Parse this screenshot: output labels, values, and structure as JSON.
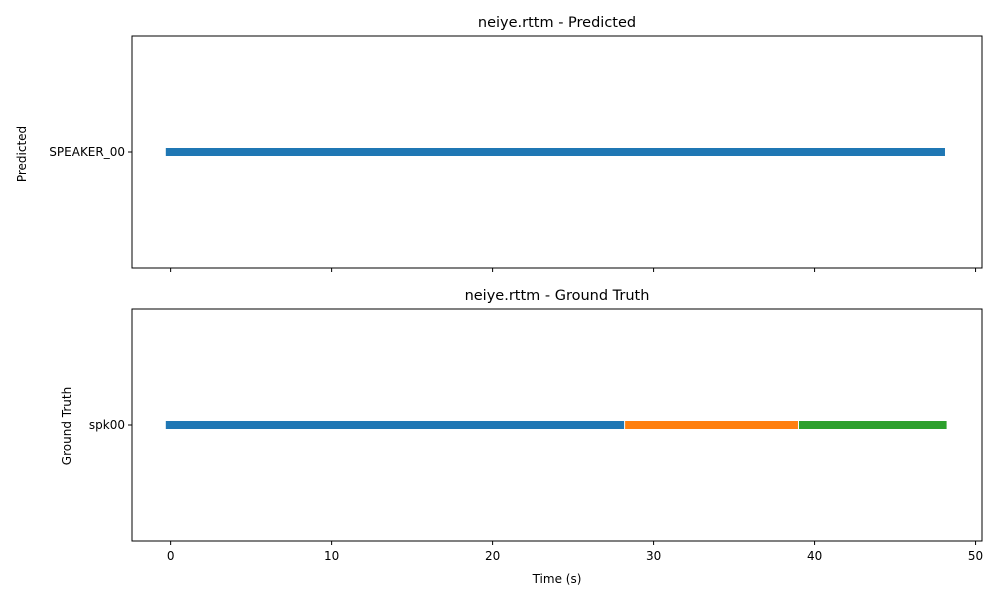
{
  "chart_data": [
    {
      "type": "timeline",
      "title": "neiye.rttm - Predicted",
      "ylabel": "Predicted",
      "xlabel": "",
      "xlim": [
        -2.4,
        50.4
      ],
      "x_ticks": [
        0,
        10,
        20,
        30,
        40,
        50
      ],
      "show_x_tick_labels": false,
      "grid": false,
      "categories": [
        "SPEAKER_00"
      ],
      "segments": [
        {
          "row": "SPEAKER_00",
          "start": -0.3,
          "end": 48.1,
          "color": "#1f77b4"
        }
      ]
    },
    {
      "type": "timeline",
      "title": "neiye.rttm - Ground Truth",
      "ylabel": "Ground Truth",
      "xlabel": "Time (s)",
      "xlim": [
        -2.4,
        50.4
      ],
      "x_ticks": [
        0,
        10,
        20,
        30,
        40,
        50
      ],
      "show_x_tick_labels": true,
      "grid": false,
      "categories": [
        "spk00"
      ],
      "segments": [
        {
          "row": "spk00",
          "start": -0.3,
          "end": 28.2,
          "color": "#1f77b4"
        },
        {
          "row": "spk00",
          "start": 28.2,
          "end": 39.0,
          "color": "#ff7f0e"
        },
        {
          "row": "spk00",
          "start": 39.0,
          "end": 48.2,
          "color": "#2ca02c"
        }
      ]
    }
  ]
}
